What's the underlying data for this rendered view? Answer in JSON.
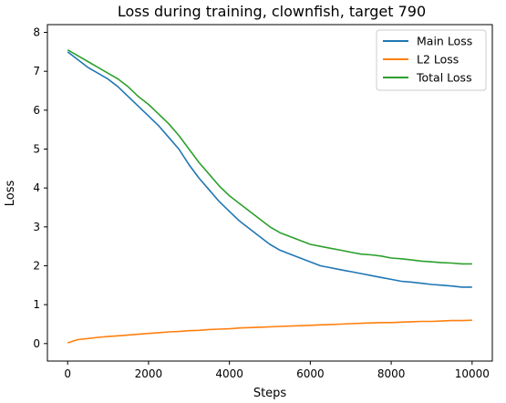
{
  "chart_data": {
    "type": "line",
    "title": "Loss during training, clownfish, target 790",
    "xlabel": "Steps",
    "ylabel": "Loss",
    "xlim": [
      -500,
      10500
    ],
    "ylim": [
      -0.45,
      8.2
    ],
    "xticks": [
      0,
      2000,
      4000,
      6000,
      8000,
      10000
    ],
    "yticks": [
      0,
      1,
      2,
      3,
      4,
      5,
      6,
      7,
      8
    ],
    "grid": false,
    "legend_position": "top-right",
    "series": [
      {
        "name": "Main Loss",
        "color": "#1f77b4",
        "x": [
          0,
          250,
          500,
          750,
          1000,
          1250,
          1500,
          1750,
          2000,
          2250,
          2500,
          2750,
          3000,
          3250,
          3500,
          3750,
          4000,
          4250,
          4500,
          4750,
          5000,
          5250,
          5500,
          5750,
          6000,
          6250,
          6500,
          6750,
          7000,
          7250,
          7500,
          7750,
          8000,
          8250,
          8500,
          8750,
          9000,
          9250,
          9500,
          9750,
          10000
        ],
        "y": [
          7.5,
          7.3,
          7.1,
          6.95,
          6.8,
          6.6,
          6.35,
          6.1,
          5.85,
          5.6,
          5.3,
          5.0,
          4.6,
          4.25,
          3.95,
          3.65,
          3.4,
          3.15,
          2.95,
          2.75,
          2.55,
          2.4,
          2.3,
          2.2,
          2.1,
          2.0,
          1.95,
          1.9,
          1.85,
          1.8,
          1.75,
          1.7,
          1.65,
          1.6,
          1.58,
          1.55,
          1.52,
          1.5,
          1.48,
          1.45,
          1.45
        ]
      },
      {
        "name": "L2 Loss",
        "color": "#ff7f0e",
        "x": [
          0,
          250,
          500,
          750,
          1000,
          1250,
          1500,
          1750,
          2000,
          2250,
          2500,
          2750,
          3000,
          3250,
          3500,
          3750,
          4000,
          4250,
          4500,
          4750,
          5000,
          5250,
          5500,
          5750,
          6000,
          6250,
          6500,
          6750,
          7000,
          7250,
          7500,
          7750,
          8000,
          8250,
          8500,
          8750,
          9000,
          9250,
          9500,
          9750,
          10000
        ],
        "y": [
          0.02,
          0.1,
          0.13,
          0.16,
          0.18,
          0.2,
          0.22,
          0.24,
          0.26,
          0.28,
          0.3,
          0.31,
          0.33,
          0.34,
          0.36,
          0.37,
          0.38,
          0.4,
          0.41,
          0.42,
          0.43,
          0.44,
          0.45,
          0.46,
          0.47,
          0.48,
          0.49,
          0.5,
          0.51,
          0.52,
          0.53,
          0.54,
          0.54,
          0.55,
          0.56,
          0.57,
          0.57,
          0.58,
          0.59,
          0.59,
          0.6
        ]
      },
      {
        "name": "Total Loss",
        "color": "#2ca02c",
        "x": [
          0,
          250,
          500,
          750,
          1000,
          1250,
          1500,
          1750,
          2000,
          2250,
          2500,
          2750,
          3000,
          3250,
          3500,
          3750,
          4000,
          4250,
          4500,
          4750,
          5000,
          5250,
          5500,
          5750,
          6000,
          6250,
          6500,
          6750,
          7000,
          7250,
          7500,
          7750,
          8000,
          8250,
          8500,
          8750,
          9000,
          9250,
          9500,
          9750,
          10000
        ],
        "y": [
          7.55,
          7.4,
          7.25,
          7.1,
          6.95,
          6.8,
          6.6,
          6.35,
          6.15,
          5.9,
          5.65,
          5.35,
          5.0,
          4.65,
          4.35,
          4.05,
          3.8,
          3.6,
          3.4,
          3.2,
          3.0,
          2.85,
          2.75,
          2.65,
          2.55,
          2.5,
          2.45,
          2.4,
          2.35,
          2.3,
          2.28,
          2.25,
          2.2,
          2.18,
          2.15,
          2.12,
          2.1,
          2.08,
          2.07,
          2.05,
          2.05
        ]
      }
    ]
  }
}
